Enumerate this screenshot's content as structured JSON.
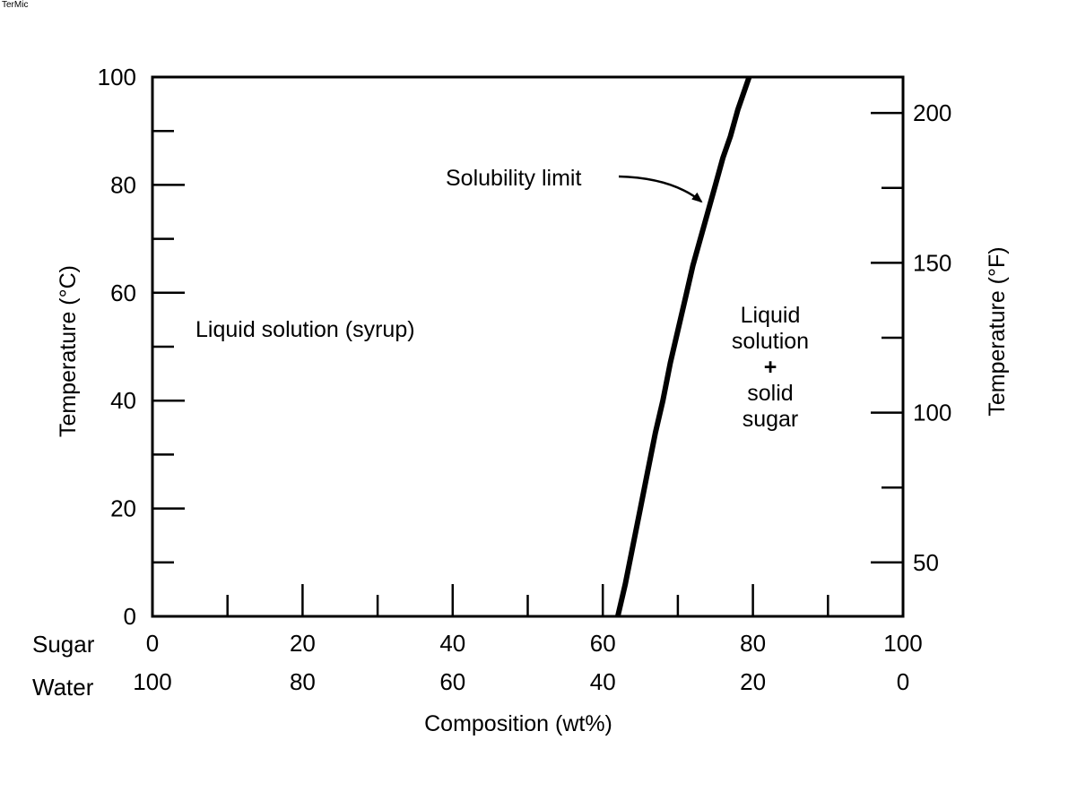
{
  "watermark": "TerMic",
  "chart_data": {
    "type": "line",
    "title": "",
    "xlabel": "Composition (wt%)",
    "ylabel_left": "Temperature (°C)",
    "ylabel_right": "Temperature (°F)",
    "composition_rows": [
      {
        "label": "Sugar",
        "ticks": [
          "0",
          "20",
          "40",
          "60",
          "80",
          "100"
        ]
      },
      {
        "label": "Water",
        "ticks": [
          "100",
          "80",
          "60",
          "40",
          "20",
          "0"
        ]
      }
    ],
    "xlim": [
      0,
      100
    ],
    "ylim": [
      0,
      100
    ],
    "y_left_ticks": [
      "0",
      "20",
      "40",
      "60",
      "80",
      "100"
    ],
    "y_right_ticks": [
      "50",
      "100",
      "150",
      "200"
    ],
    "grid": false,
    "series": [
      {
        "x": [
          62,
          63,
          64,
          65,
          66,
          67,
          68,
          69,
          70,
          71,
          72,
          73,
          74,
          75,
          76,
          77,
          78,
          79.5
        ],
        "y": [
          0,
          6,
          13,
          20,
          27,
          34,
          40,
          47,
          53,
          59,
          65,
          70,
          75,
          80,
          85,
          89,
          94,
          100
        ]
      }
    ],
    "annotations": {
      "solubility_limit": "Solubility limit",
      "left_region": "Liquid solution (syrup)",
      "right_region": [
        "Liquid",
        "solution",
        "+",
        "solid",
        "sugar"
      ]
    }
  }
}
